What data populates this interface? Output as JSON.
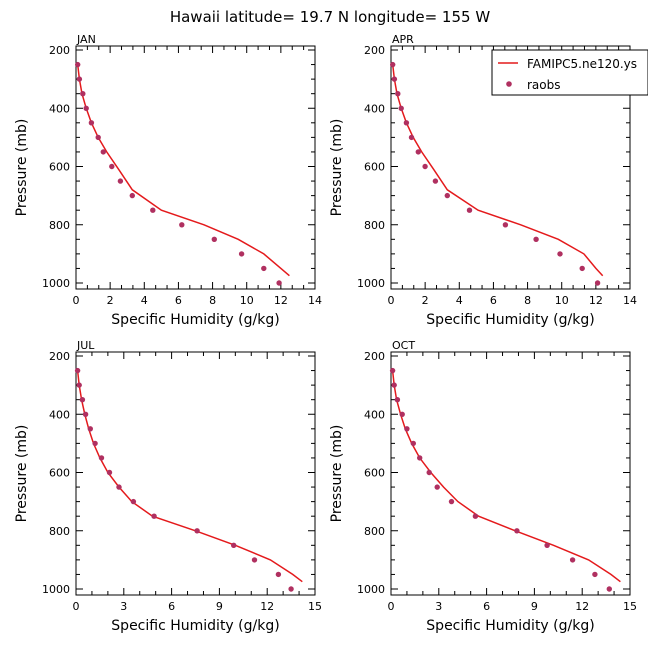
{
  "title": "Hawaii  latitude= 19.7 N longitude= 155 W",
  "colors": {
    "model_line": "#e41a1c",
    "obs_marker": "#b03060",
    "axis": "#000000"
  },
  "legend": {
    "placement": "top-right",
    "line_label": "FAMIPC5.ne120.ys",
    "marker_label": "raobs"
  },
  "chart_data": [
    {
      "type": "line",
      "panel_label": "JAN",
      "xlabel": "Specific Humidity (g/kg)",
      "ylabel": "Pressure (mb)",
      "xlim": [
        0,
        14
      ],
      "ylim": [
        1000,
        200
      ],
      "y_inverted": true,
      "xticks": [
        "0",
        "2",
        "4",
        "6",
        "8",
        "10",
        "12",
        "14"
      ],
      "yticks": [
        "200",
        "400",
        "600",
        "800",
        "1000"
      ],
      "series": [
        {
          "name": "FAMIPC5.ne120.ys",
          "kind": "line",
          "x": [
            0.1,
            0.2,
            0.35,
            0.6,
            0.9,
            1.3,
            1.8,
            2.5,
            3.3,
            5.0,
            7.5,
            9.5,
            11.0,
            12.0,
            12.5
          ],
          "y": [
            250,
            300,
            350,
            400,
            450,
            500,
            550,
            610,
            680,
            750,
            800,
            850,
            900,
            950,
            975
          ]
        },
        {
          "name": "raobs",
          "kind": "scatter",
          "x": [
            0.1,
            0.2,
            0.4,
            0.6,
            0.9,
            1.3,
            1.6,
            2.1,
            2.6,
            3.3,
            4.5,
            6.2,
            8.1,
            9.7,
            11.0,
            11.9
          ],
          "y": [
            250,
            300,
            350,
            400,
            450,
            500,
            550,
            600,
            650,
            700,
            750,
            800,
            850,
            900,
            950,
            1000
          ]
        }
      ]
    },
    {
      "type": "line",
      "panel_label": "APR",
      "xlabel": "Specific Humidity (g/kg)",
      "ylabel": "Pressure (mb)",
      "xlim": [
        0,
        14
      ],
      "ylim": [
        1000,
        200
      ],
      "y_inverted": true,
      "xticks": [
        "0",
        "2",
        "4",
        "6",
        "8",
        "10",
        "12",
        "14"
      ],
      "yticks": [
        "200",
        "400",
        "600",
        "800",
        "1000"
      ],
      "series": [
        {
          "name": "FAMIPC5.ne120.ys",
          "kind": "line",
          "x": [
            0.1,
            0.2,
            0.35,
            0.6,
            0.9,
            1.3,
            1.8,
            2.5,
            3.3,
            5.1,
            7.6,
            9.8,
            11.3,
            12.0,
            12.4
          ],
          "y": [
            250,
            300,
            350,
            400,
            450,
            500,
            550,
            610,
            680,
            750,
            800,
            850,
            900,
            950,
            975
          ]
        },
        {
          "name": "raobs",
          "kind": "scatter",
          "x": [
            0.1,
            0.2,
            0.4,
            0.6,
            0.9,
            1.2,
            1.6,
            2.0,
            2.6,
            3.3,
            4.6,
            6.7,
            8.5,
            9.9,
            11.2,
            12.1
          ],
          "y": [
            250,
            300,
            350,
            400,
            450,
            500,
            550,
            600,
            650,
            700,
            750,
            800,
            850,
            900,
            950,
            1000
          ]
        }
      ]
    },
    {
      "type": "line",
      "panel_label": "JUL",
      "xlabel": "Specific Humidity (g/kg)",
      "ylabel": "Pressure (mb)",
      "xlim": [
        0,
        15
      ],
      "ylim": [
        1000,
        200
      ],
      "y_inverted": true,
      "xticks": [
        "0",
        "3",
        "6",
        "9",
        "12",
        "15"
      ],
      "yticks": [
        "200",
        "400",
        "600",
        "800",
        "1000"
      ],
      "series": [
        {
          "name": "FAMIPC5.ne120.ys",
          "kind": "line",
          "x": [
            0.1,
            0.2,
            0.35,
            0.55,
            0.8,
            1.1,
            1.5,
            2.0,
            2.7,
            3.5,
            4.8,
            7.5,
            10.0,
            12.2,
            13.6,
            14.2
          ],
          "y": [
            250,
            300,
            350,
            400,
            450,
            500,
            550,
            600,
            650,
            700,
            750,
            800,
            850,
            900,
            950,
            975
          ]
        },
        {
          "name": "raobs",
          "kind": "scatter",
          "x": [
            0.1,
            0.2,
            0.4,
            0.6,
            0.9,
            1.2,
            1.6,
            2.1,
            2.7,
            3.6,
            4.9,
            7.6,
            9.9,
            11.2,
            12.7,
            13.5
          ],
          "y": [
            250,
            300,
            350,
            400,
            450,
            500,
            550,
            600,
            650,
            700,
            750,
            800,
            850,
            900,
            950,
            1000
          ]
        }
      ]
    },
    {
      "type": "line",
      "panel_label": "OCT",
      "xlabel": "Specific Humidity (g/kg)",
      "ylabel": "Pressure (mb)",
      "xlim": [
        0,
        15
      ],
      "ylim": [
        1000,
        200
      ],
      "y_inverted": true,
      "xticks": [
        "0",
        "3",
        "6",
        "9",
        "12",
        "15"
      ],
      "yticks": [
        "200",
        "400",
        "600",
        "800",
        "1000"
      ],
      "series": [
        {
          "name": "FAMIPC5.ne120.ys",
          "kind": "line",
          "x": [
            0.1,
            0.2,
            0.35,
            0.6,
            0.9,
            1.3,
            1.8,
            2.5,
            3.3,
            4.2,
            5.5,
            7.8,
            10.2,
            12.4,
            13.8,
            14.4
          ],
          "y": [
            250,
            300,
            350,
            400,
            450,
            500,
            550,
            600,
            650,
            700,
            750,
            800,
            850,
            900,
            950,
            975
          ]
        },
        {
          "name": "raobs",
          "kind": "scatter",
          "x": [
            0.1,
            0.2,
            0.4,
            0.7,
            1.0,
            1.4,
            1.8,
            2.4,
            2.9,
            3.8,
            5.3,
            7.9,
            9.8,
            11.4,
            12.8,
            13.7
          ],
          "y": [
            250,
            300,
            350,
            400,
            450,
            500,
            550,
            600,
            650,
            700,
            750,
            800,
            850,
            900,
            950,
            1000
          ]
        }
      ]
    }
  ]
}
